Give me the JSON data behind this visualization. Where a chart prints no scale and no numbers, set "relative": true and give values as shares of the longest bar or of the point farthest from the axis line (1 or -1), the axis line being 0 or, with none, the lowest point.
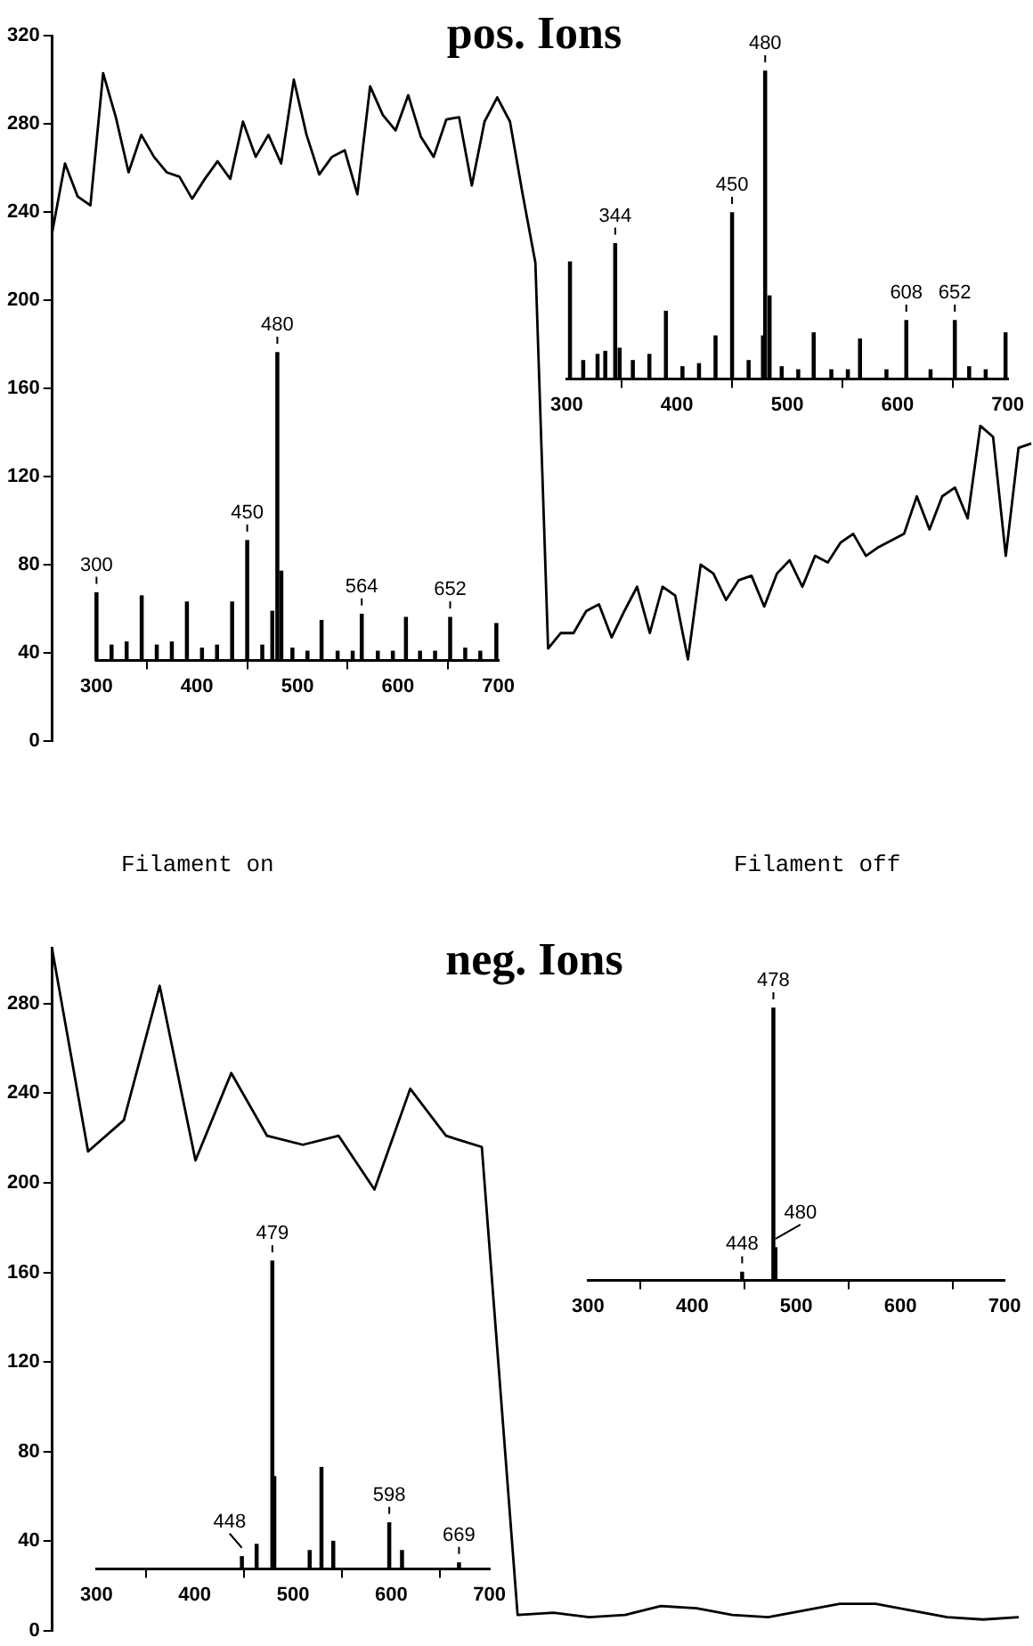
{
  "chart_data": [
    {
      "type": "line",
      "title": "pos. Ions",
      "categories": [
        null,
        null,
        null,
        null,
        null,
        null,
        null,
        null,
        null,
        null,
        null,
        null,
        null,
        null,
        null,
        null,
        null,
        null,
        null,
        null,
        null,
        null,
        null,
        null,
        null,
        null,
        null,
        null,
        null,
        null,
        null,
        null,
        null,
        null,
        null,
        null,
        null,
        null,
        null,
        null,
        null,
        null,
        null,
        null,
        null,
        null,
        null,
        null,
        null,
        null,
        null,
        null,
        null,
        null,
        null,
        null,
        null,
        null,
        null,
        null,
        null,
        null,
        null,
        null,
        null,
        null,
        null,
        null,
        null,
        null,
        null,
        null,
        null,
        null,
        null,
        null,
        null,
        null
      ],
      "series": [
        {
          "color": "#000000",
          "values": [
            231,
            262,
            247,
            243,
            303,
            283,
            258,
            275,
            265,
            258,
            256,
            246,
            255,
            263,
            255,
            281,
            265,
            275,
            262,
            300,
            275,
            257,
            265,
            268,
            248,
            297,
            284,
            277,
            293,
            274,
            265,
            282,
            283,
            252,
            281,
            292,
            281,
            248,
            217,
            42,
            49,
            49,
            59,
            62,
            47,
            59,
            70,
            49,
            70,
            66,
            37,
            80,
            76,
            64,
            73,
            75,
            61,
            76,
            82,
            70,
            84,
            81,
            90,
            94,
            84,
            88,
            91,
            94,
            111,
            96,
            111,
            115,
            101,
            143,
            138,
            84,
            133,
            135
          ]
        }
      ],
      "ylim": [
        0,
        320
      ],
      "yticks": [
        0,
        40,
        80,
        120,
        160,
        200,
        240,
        280,
        320
      ],
      "tick_labels": "y",
      "annotations": [
        "Filament on",
        "Filament off"
      ]
    },
    {
      "type": "bar",
      "relative": true,
      "xlim": [
        300,
        700
      ],
      "xticks": [
        300,
        400,
        500,
        600,
        700
      ],
      "x": [
        300,
        315,
        330,
        345,
        360,
        375,
        390,
        405,
        420,
        435,
        450,
        465,
        475,
        480,
        484,
        495,
        510,
        524,
        540,
        555,
        564,
        580,
        595,
        608,
        622,
        637,
        652,
        667,
        682,
        698
      ],
      "series": [
        {
          "color": "#000000",
          "values": [
            0.22,
            0.05,
            0.06,
            0.21,
            0.05,
            0.06,
            0.19,
            0.04,
            0.05,
            0.19,
            0.39,
            0.05,
            0.16,
            1,
            0.29,
            0.04,
            0.03,
            0.13,
            0.03,
            0.03,
            0.15,
            0.03,
            0.03,
            0.14,
            0.03,
            0.03,
            0.14,
            0.04,
            0.03,
            0.12
          ]
        }
      ],
      "annotations": [
        {
          "text": "300",
          "x": 300,
          "y": 0.22
        },
        {
          "text": "450",
          "x": 450,
          "y": 0.39
        },
        {
          "text": "480",
          "x": 480,
          "y": 1
        },
        {
          "text": "564",
          "x": 564,
          "y": 0.15
        },
        {
          "text": "652",
          "x": 652,
          "y": 0.14
        }
      ]
    },
    {
      "type": "bar",
      "relative": true,
      "xlim": [
        300,
        700
      ],
      "xticks": [
        300,
        400,
        500,
        600,
        700
      ],
      "x": [
        303,
        315,
        328,
        335,
        344,
        348,
        360,
        375,
        390,
        405,
        420,
        435,
        450,
        465,
        478,
        480,
        484,
        495,
        510,
        524,
        540,
        555,
        566,
        590,
        608,
        630,
        652,
        665,
        680,
        698
      ],
      "series": [
        {
          "color": "#000000",
          "values": [
            0.38,
            0.06,
            0.08,
            0.09,
            0.44,
            0.1,
            0.06,
            0.08,
            0.22,
            0.04,
            0.05,
            0.14,
            0.54,
            0.06,
            0.14,
            1,
            0.27,
            0.04,
            0.03,
            0.15,
            0.03,
            0.03,
            0.13,
            0.03,
            0.19,
            0.03,
            0.19,
            0.04,
            0.03,
            0.15
          ]
        }
      ],
      "annotations": [
        {
          "text": "344",
          "x": 344,
          "y": 0.44
        },
        {
          "text": "450",
          "x": 450,
          "y": 0.54
        },
        {
          "text": "480",
          "x": 480,
          "y": 1
        },
        {
          "text": "608",
          "x": 608,
          "y": 0.19
        },
        {
          "text": "652",
          "x": 652,
          "y": 0.19
        }
      ]
    },
    {
      "type": "line",
      "title": "neg. Ions",
      "categories": [
        null,
        null,
        null,
        null,
        null,
        null,
        null,
        null,
        null,
        null,
        null,
        null,
        null,
        null,
        null,
        null,
        null,
        null,
        null,
        null,
        null,
        null,
        null,
        null,
        null,
        null,
        null,
        null
      ],
      "series": [
        {
          "color": "#000000",
          "values": [
            304,
            214,
            228,
            288,
            210,
            249,
            221,
            217,
            221,
            197,
            242,
            221,
            216,
            7,
            8,
            6,
            7,
            11,
            10,
            7,
            6,
            9,
            12,
            12,
            9,
            6,
            5,
            6
          ]
        }
      ],
      "ylim": [
        0,
        305
      ],
      "yticks": [
        0,
        40,
        80,
        120,
        160,
        200,
        240,
        280
      ],
      "tick_labels": "y"
    },
    {
      "type": "bar",
      "relative": true,
      "xlim": [
        300,
        700
      ],
      "xticks": [
        300,
        400,
        500,
        600,
        700
      ],
      "x": [
        448,
        463,
        479,
        481,
        517,
        529,
        541,
        598,
        611,
        669
      ],
      "series": [
        {
          "color": "#000000",
          "values": [
            0.04,
            0.08,
            1,
            0.3,
            0.06,
            0.33,
            0.09,
            0.15,
            0.06,
            0.02
          ]
        }
      ],
      "annotations": [
        {
          "text": "448",
          "x": 448,
          "y": 0.04
        },
        {
          "text": "479",
          "x": 479,
          "y": 1
        },
        {
          "text": "598",
          "x": 598,
          "y": 0.15
        },
        {
          "text": "669",
          "x": 669,
          "y": 0.02
        }
      ]
    },
    {
      "type": "bar",
      "relative": true,
      "xlim": [
        300,
        700
      ],
      "xticks": [
        300,
        400,
        500,
        600,
        700
      ],
      "x": [
        448,
        478,
        480
      ],
      "series": [
        {
          "color": "#000000",
          "values": [
            0.03,
            1,
            0.12
          ]
        }
      ],
      "annotations": [
        {
          "text": "448",
          "x": 448,
          "y": 0.03
        },
        {
          "text": "478",
          "x": 478,
          "y": 1
        },
        {
          "text": "480",
          "x": 480,
          "y": 0.12
        }
      ]
    }
  ]
}
